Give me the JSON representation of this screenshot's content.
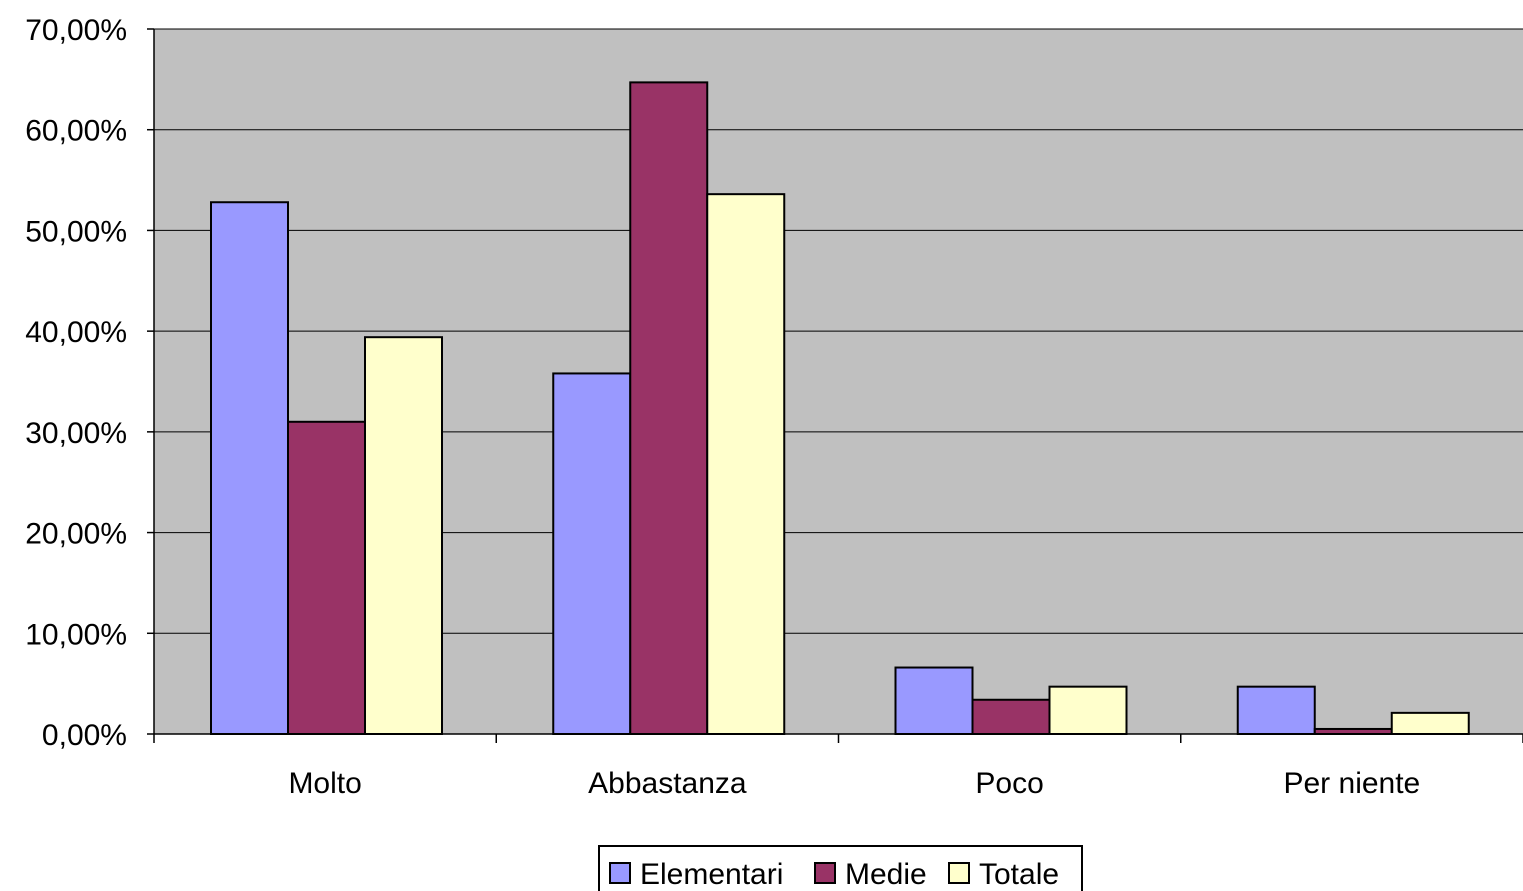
{
  "chart_data": {
    "type": "bar",
    "title": "",
    "xlabel": "",
    "ylabel": "",
    "categories": [
      "Molto",
      "Abbastanza",
      "Poco",
      "Per niente"
    ],
    "series": [
      {
        "name": "Elementari",
        "values": [
          52.8,
          35.8,
          6.6,
          4.7
        ],
        "color": "#9999FF"
      },
      {
        "name": "Medie",
        "values": [
          31.0,
          64.7,
          3.4,
          0.5
        ],
        "color": "#993366"
      },
      {
        "name": "Totale",
        "values": [
          39.4,
          53.6,
          4.7,
          2.1
        ],
        "color": "#FFFFCC"
      }
    ],
    "ylim": [
      0,
      70
    ],
    "yticks": [
      0,
      10,
      20,
      30,
      40,
      50,
      60,
      70
    ],
    "ytick_labels": [
      "0,00%",
      "10,00%",
      "20,00%",
      "30,00%",
      "40,00%",
      "50,00%",
      "60,00%",
      "70,00%"
    ],
    "grid": true,
    "legend_position": "bottom"
  },
  "colors": {
    "plot_background": "#C0C0C0",
    "gridline": "#000000",
    "bar_outline": "#000000"
  }
}
